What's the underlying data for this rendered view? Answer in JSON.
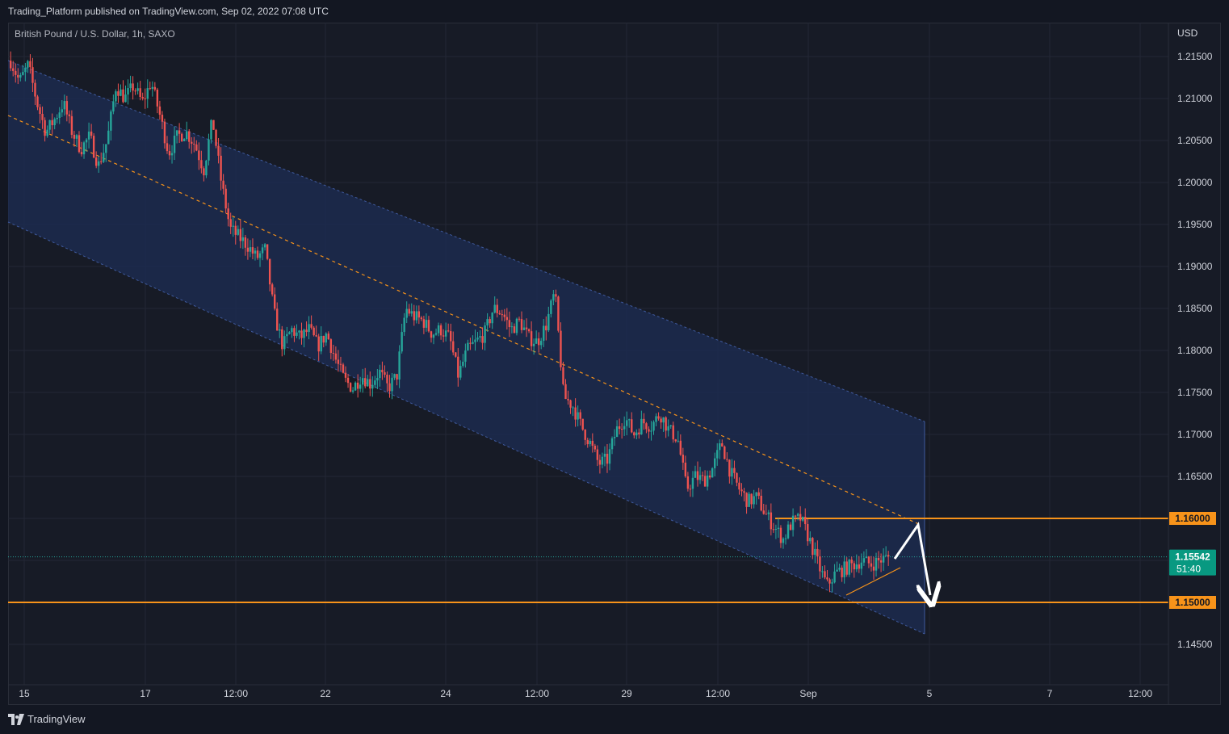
{
  "header": {
    "published": "Trading_Platform published on TradingView.com, Sep 02, 2022 07:08 UTC"
  },
  "symbol": "British Pound / U.S. Dollar, 1h, SAXO",
  "currency": "USD",
  "footer": {
    "brand": "TradingView"
  },
  "colors": {
    "background": "#171b26",
    "up": "#26a69a",
    "down": "#ef5350",
    "channel_fill": "#1c2b52",
    "channel_edge": "#3f5a9e",
    "orange": "#f7931a",
    "price_tag": "#089981"
  },
  "chart_data": {
    "type": "candlestick",
    "x_ticks": [
      "15",
      "17",
      "12:00",
      "22",
      "24",
      "12:00",
      "29",
      "12:00",
      "Sep",
      "5",
      "7",
      "12:00"
    ],
    "y_ticks": [
      "1.21500",
      "1.21000",
      "1.20500",
      "1.20000",
      "1.19500",
      "1.19000",
      "1.18500",
      "1.18000",
      "1.17500",
      "1.17000",
      "1.16500",
      "1.16000",
      "1.15500",
      "1.15000",
      "1.14500"
    ],
    "ylim": [
      1.1425,
      1.219
    ],
    "horizontal_levels": [
      {
        "value": 1.16,
        "label": "1.16000"
      },
      {
        "value": 1.15,
        "label": "1.15000"
      }
    ],
    "last_price": {
      "value": 1.15542,
      "label": "1.15542",
      "countdown": "51:40"
    },
    "series_path": [
      1.2145,
      1.212,
      1.214,
      1.2095,
      1.206,
      1.2075,
      1.2095,
      1.206,
      1.204,
      1.2055,
      1.202,
      1.205,
      1.2115,
      1.21,
      1.2115,
      1.2095,
      1.212,
      1.208,
      1.2035,
      1.2055,
      1.206,
      1.2045,
      1.2015,
      1.2075,
      1.2,
      1.1945,
      1.1935,
      1.1925,
      1.191,
      1.192,
      1.1845,
      1.1805,
      1.1825,
      1.1815,
      1.1825,
      1.1805,
      1.182,
      1.179,
      1.1765,
      1.1755,
      1.177,
      1.176,
      1.1775,
      1.1755,
      1.177,
      1.185,
      1.184,
      1.1835,
      1.182,
      1.1825,
      1.1815,
      1.177,
      1.18,
      1.181,
      1.182,
      1.185,
      1.1845,
      1.1825,
      1.1835,
      1.1815,
      1.181,
      1.183,
      1.187,
      1.1745,
      1.1735,
      1.171,
      1.169,
      1.1665,
      1.167,
      1.1705,
      1.172,
      1.17,
      1.1715,
      1.171,
      1.1725,
      1.1705,
      1.1695,
      1.1635,
      1.165,
      1.1645,
      1.166,
      1.169,
      1.1655,
      1.1635,
      1.162,
      1.1625,
      1.1605,
      1.159,
      1.1575,
      1.1595,
      1.16,
      1.1575,
      1.1545,
      1.152,
      1.1535,
      1.154,
      1.1545,
      1.155,
      1.1545,
      1.155,
      1.1554
    ]
  }
}
